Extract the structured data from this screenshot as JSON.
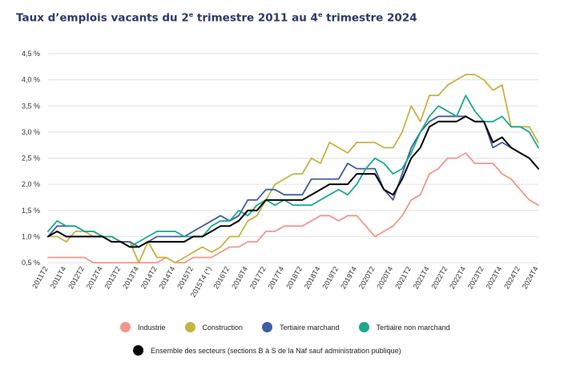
{
  "title": {
    "prefix": "Taux d’emplois vacants du 2",
    "sup1": "e",
    "middle": " trimestre 2011 au 4",
    "sup2": "e",
    "suffix": " trimestre 2024"
  },
  "colors": {
    "industrie": "#f4958a",
    "construction": "#c6b243",
    "tertiaire_marchand": "#3f5ba7",
    "tertiaire_non_marchand": "#1aaa8c",
    "ensemble": "#000000",
    "grid": "#e1e1e1"
  },
  "chart_data": {
    "type": "line",
    "title": "Taux d’emplois vacants du 2e trimestre 2011 au 4e trimestre 2024",
    "xlabel": "",
    "ylabel": "",
    "ylim": [
      0.5,
      4.5
    ],
    "grid": true,
    "legend_position": "bottom",
    "y_ticks": [
      "0,5 %",
      "1,0 %",
      "1,5 %",
      "2,0 %",
      "2,5 %",
      "3,0 %",
      "3,5 %",
      "4,0 %",
      "4,5 %"
    ],
    "x_tick_labels": [
      "2011T2",
      "2011T4",
      "2012T2",
      "2012T4",
      "2013T2",
      "2013T4",
      "2014T2",
      "2014T4",
      "2015T2",
      "2015T4 (*)",
      "2016T2",
      "2016T4",
      "2017T2",
      "2017T4",
      "2018T2",
      "2018T4",
      "2019T2",
      "2019T4",
      "2020T2",
      "2020T4",
      "2021T2",
      "2021T4",
      "2022T2",
      "2022T4",
      "2023T2",
      "2023T4",
      "2024T2",
      "2024T4"
    ],
    "x": [
      "2011T2",
      "2011T3",
      "2011T4",
      "2012T1",
      "2012T2",
      "2012T3",
      "2012T4",
      "2013T1",
      "2013T2",
      "2013T3",
      "2013T4",
      "2014T1",
      "2014T2",
      "2014T3",
      "2014T4",
      "2015T1",
      "2015T2",
      "2015T3",
      "2015T4 (*)",
      "2016T1",
      "2016T2",
      "2016T3",
      "2016T4",
      "2017T1",
      "2017T2",
      "2017T3",
      "2017T4",
      "2018T1",
      "2018T2",
      "2018T3",
      "2018T4",
      "2019T1",
      "2019T2",
      "2019T3",
      "2019T4",
      "2020T1",
      "2020T2",
      "2020T3",
      "2020T4",
      "2021T1",
      "2021T2",
      "2021T3",
      "2021T4",
      "2022T1",
      "2022T2",
      "2022T3",
      "2022T4",
      "2023T1",
      "2023T2",
      "2023T3",
      "2023T4",
      "2024T1",
      "2024T2",
      "2024T3",
      "2024T4"
    ],
    "series": [
      {
        "name": "Industrie",
        "values": [
          0.6,
          0.6,
          0.6,
          0.6,
          0.6,
          0.5,
          0.5,
          0.5,
          0.5,
          0.5,
          0.5,
          0.5,
          0.5,
          0.6,
          0.5,
          0.5,
          0.6,
          0.6,
          0.6,
          0.7,
          0.8,
          0.8,
          0.9,
          0.9,
          1.1,
          1.1,
          1.2,
          1.2,
          1.2,
          1.3,
          1.4,
          1.4,
          1.3,
          1.4,
          1.4,
          1.2,
          1.0,
          1.1,
          1.2,
          1.4,
          1.7,
          1.8,
          2.2,
          2.3,
          2.5,
          2.5,
          2.6,
          2.4,
          2.4,
          2.4,
          2.2,
          2.1,
          1.9,
          1.7,
          1.6
        ]
      },
      {
        "name": "Construction",
        "values": [
          1.0,
          1.0,
          0.9,
          1.1,
          1.1,
          1.0,
          1.0,
          1.0,
          0.9,
          0.9,
          0.5,
          0.9,
          0.6,
          0.6,
          0.5,
          0.6,
          0.7,
          0.8,
          0.7,
          0.8,
          1.0,
          1.0,
          1.3,
          1.4,
          1.7,
          2.0,
          2.1,
          2.2,
          2.2,
          2.5,
          2.4,
          2.8,
          2.7,
          2.6,
          2.8,
          2.8,
          2.8,
          2.7,
          2.7,
          3.0,
          3.5,
          3.2,
          3.7,
          3.7,
          3.9,
          4.0,
          4.1,
          4.1,
          4.0,
          3.8,
          3.9,
          3.1,
          3.1,
          3.1,
          2.8
        ]
      },
      {
        "name": "Tertiaire marchand",
        "values": [
          1.0,
          1.2,
          1.2,
          1.2,
          1.1,
          1.1,
          1.0,
          1.0,
          0.9,
          0.9,
          0.8,
          0.9,
          1.0,
          1.0,
          1.0,
          1.0,
          1.1,
          1.2,
          1.3,
          1.4,
          1.3,
          1.4,
          1.7,
          1.7,
          1.9,
          1.9,
          1.8,
          1.8,
          1.8,
          2.1,
          2.1,
          2.1,
          2.1,
          2.4,
          2.3,
          2.3,
          2.3,
          1.9,
          1.7,
          2.2,
          2.7,
          3.0,
          3.2,
          3.3,
          3.3,
          3.3,
          3.3,
          3.2,
          3.2,
          2.7,
          2.8,
          2.7,
          2.6,
          2.5,
          2.3
        ]
      },
      {
        "name": "Tertiaire non marchand",
        "values": [
          1.1,
          1.3,
          1.2,
          1.2,
          1.1,
          1.1,
          1.0,
          1.0,
          0.9,
          0.8,
          0.9,
          1.0,
          1.1,
          1.1,
          1.1,
          1.0,
          1.0,
          1.0,
          1.2,
          1.3,
          1.3,
          1.5,
          1.4,
          1.6,
          1.7,
          1.6,
          1.7,
          1.6,
          1.6,
          1.6,
          1.7,
          1.8,
          1.9,
          1.8,
          2.0,
          2.3,
          2.5,
          2.4,
          2.2,
          2.3,
          2.6,
          3.0,
          3.3,
          3.5,
          3.4,
          3.3,
          3.7,
          3.4,
          3.2,
          3.2,
          3.3,
          3.1,
          3.1,
          3.0,
          2.7
        ]
      },
      {
        "name": "Ensemble des secteurs (sections B à S de la Naf sauf administration publique)",
        "values": [
          1.0,
          1.1,
          1.0,
          1.0,
          1.0,
          1.0,
          1.0,
          0.9,
          0.9,
          0.8,
          0.8,
          0.9,
          0.9,
          0.9,
          0.9,
          0.9,
          1.0,
          1.0,
          1.1,
          1.2,
          1.2,
          1.3,
          1.5,
          1.5,
          1.7,
          1.7,
          1.7,
          1.7,
          1.7,
          1.8,
          1.9,
          2.0,
          2.0,
          2.0,
          2.2,
          2.2,
          2.2,
          1.9,
          1.8,
          2.1,
          2.5,
          2.7,
          3.1,
          3.2,
          3.2,
          3.2,
          3.3,
          3.2,
          3.2,
          2.8,
          2.9,
          2.7,
          2.6,
          2.5,
          2.3
        ]
      }
    ]
  },
  "legend": {
    "row1": [
      {
        "key": "industrie",
        "label": "Industrie"
      },
      {
        "key": "construction",
        "label": "Construction"
      },
      {
        "key": "tertiaire_marchand",
        "label": "Tertiaire marchand"
      },
      {
        "key": "tertiaire_non_marchand",
        "label": "Tertiaire non marchand"
      }
    ],
    "row2": [
      {
        "key": "ensemble",
        "label": "Ensemble des secteurs (sections B à S de la Naf sauf administration publique)"
      }
    ]
  }
}
